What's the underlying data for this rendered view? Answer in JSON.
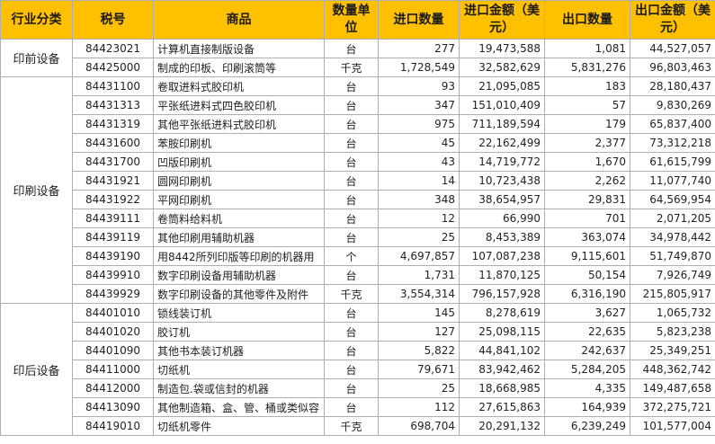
{
  "headers": {
    "category": "行业分类",
    "code": "税号",
    "product": "商品",
    "unit": "数量单位",
    "import_qty": "进口数量",
    "import_amt": "进口金额（美元）",
    "export_qty": "出口数量",
    "export_amt": "出口金额（美元）"
  },
  "groups": [
    {
      "category": "印前设备",
      "rows": [
        {
          "code": "84423021",
          "product": "计算机直接制版设备",
          "unit": "台",
          "import_qty": "277",
          "import_amt": "19,473,588",
          "export_qty": "1,081",
          "export_amt": "44,527,057"
        },
        {
          "code": "84425000",
          "product": "制成的印板、印刷滚筒等",
          "unit": "千克",
          "import_qty": "1,728,549",
          "import_amt": "32,582,629",
          "export_qty": "5,831,276",
          "export_amt": "96,803,463"
        }
      ]
    },
    {
      "category": "印刷设备",
      "rows": [
        {
          "code": "84431100",
          "product": "卷取进料式胶印机",
          "unit": "台",
          "import_qty": "93",
          "import_amt": "21,095,085",
          "export_qty": "183",
          "export_amt": "28,180,437"
        },
        {
          "code": "84431313",
          "product": "平张纸进料式四色胶印机",
          "unit": "台",
          "import_qty": "347",
          "import_amt": "151,010,409",
          "export_qty": "57",
          "export_amt": "9,830,269"
        },
        {
          "code": "84431319",
          "product": "其他平张纸进料式胶印机",
          "unit": "台",
          "import_qty": "975",
          "import_amt": "711,189,594",
          "export_qty": "179",
          "export_amt": "65,837,400"
        },
        {
          "code": "84431600",
          "product": "苯胺印刷机",
          "unit": "台",
          "import_qty": "45",
          "import_amt": "22,162,499",
          "export_qty": "2,377",
          "export_amt": "73,312,218"
        },
        {
          "code": "84431700",
          "product": "凹版印刷机",
          "unit": "台",
          "import_qty": "43",
          "import_amt": "14,719,772",
          "export_qty": "1,670",
          "export_amt": "61,615,799"
        },
        {
          "code": "84431921",
          "product": "圆网印刷机",
          "unit": "台",
          "import_qty": "14",
          "import_amt": "10,723,438",
          "export_qty": "2,262",
          "export_amt": "11,077,740"
        },
        {
          "code": "84431922",
          "product": "平网印刷机",
          "unit": "台",
          "import_qty": "348",
          "import_amt": "38,654,957",
          "export_qty": "29,831",
          "export_amt": "64,569,954"
        },
        {
          "code": "84439111",
          "product": "卷筒料给料机",
          "unit": "台",
          "import_qty": "12",
          "import_amt": "66,990",
          "export_qty": "701",
          "export_amt": "2,071,205"
        },
        {
          "code": "84439119",
          "product": "其他印刷用辅助机器",
          "unit": "台",
          "import_qty": "25",
          "import_amt": "8,453,389",
          "export_qty": "363,074",
          "export_amt": "34,978,442"
        },
        {
          "code": "84439190",
          "product": "用8442所列印版等印刷的机器用",
          "unit": "个",
          "import_qty": "4,697,857",
          "import_amt": "107,087,238",
          "export_qty": "9,115,601",
          "export_amt": "51,749,870"
        },
        {
          "code": "84439910",
          "product": "数字印刷设备用辅助机器",
          "unit": "台",
          "import_qty": "1,731",
          "import_amt": "11,870,125",
          "export_qty": "50,154",
          "export_amt": "7,926,749"
        },
        {
          "code": "84439929",
          "product": "数字印刷设备的其他零件及附件",
          "unit": "千克",
          "import_qty": "3,554,314",
          "import_amt": "796,157,928",
          "export_qty": "6,316,190",
          "export_amt": "215,805,917"
        }
      ]
    },
    {
      "category": "印后设备",
      "rows": [
        {
          "code": "84401010",
          "product": "锁线装订机",
          "unit": "台",
          "import_qty": "145",
          "import_amt": "8,278,619",
          "export_qty": "3,627",
          "export_amt": "1,065,732"
        },
        {
          "code": "84401020",
          "product": "胶订机",
          "unit": "台",
          "import_qty": "127",
          "import_amt": "25,098,115",
          "export_qty": "22,635",
          "export_amt": "5,823,238"
        },
        {
          "code": "84401090",
          "product": "其他书本装订机器",
          "unit": "台",
          "import_qty": "5,822",
          "import_amt": "44,841,102",
          "export_qty": "242,637",
          "export_amt": "25,349,251"
        },
        {
          "code": "84411000",
          "product": "切纸机",
          "unit": "台",
          "import_qty": "79,671",
          "import_amt": "83,942,462",
          "export_qty": "5,284,205",
          "export_amt": "448,362,742"
        },
        {
          "code": "84412000",
          "product": "制造包.袋或信封的机器",
          "unit": "台",
          "import_qty": "25",
          "import_amt": "18,668,985",
          "export_qty": "4,335",
          "export_amt": "149,487,658"
        },
        {
          "code": "84413090",
          "product": "其他制造箱、盒、管、桶或类似容",
          "unit": "台",
          "import_qty": "112",
          "import_amt": "27,615,863",
          "export_qty": "164,939",
          "export_amt": "372,275,721"
        },
        {
          "code": "84419010",
          "product": "切纸机零件",
          "unit": "千克",
          "import_qty": "698,704",
          "import_amt": "20,291,132",
          "export_qty": "6,239,249",
          "export_amt": "101,577,004"
        }
      ]
    }
  ]
}
